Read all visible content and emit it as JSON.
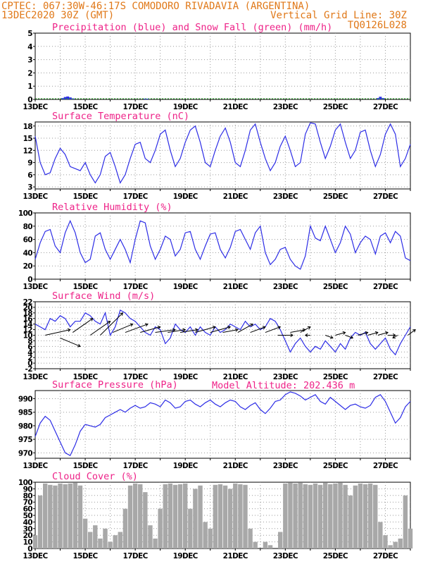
{
  "header": {
    "station": "CPTEC:  067:30W-46:17S  COMODORO RIVADAVIA (ARGENTINA)",
    "date": "13DEC2020 30Z (GMT)",
    "grid_note": "Vertical Grid Line: 30Z",
    "code": "TQ0126L028",
    "model_altitude": "Model Altitude: 202.436 m"
  },
  "x_labels": [
    "13DEC",
    "15DEC",
    "17DEC",
    "19DEC",
    "21DEC",
    "23DEC",
    "25DEC",
    "27DEC"
  ],
  "colors": {
    "line": "#2d2de6",
    "snow": "#22aa22",
    "bars": "#a8a8a8",
    "title": "#ee2288",
    "header": "#e07818"
  },
  "chart_data": [
    {
      "id": "precip",
      "type": "bar",
      "title": "Precipitation (blue) and Snow Fall (green) (mm/h)",
      "ylim": [
        0,
        5
      ],
      "yticks": [
        0,
        1,
        2,
        3,
        4,
        5
      ],
      "grid": true,
      "series": [
        {
          "name": "Precipitation",
          "color": "#2d2de6",
          "x": [
            1.1,
            1.2,
            1.3,
            1.4,
            1.5,
            4.4,
            4.5,
            13.7,
            13.8,
            13.9
          ],
          "y": [
            0.1,
            0.18,
            0.22,
            0.15,
            0.08,
            0.06,
            0.05,
            0.1,
            0.2,
            0.1
          ]
        },
        {
          "name": "Snow Fall",
          "color": "#22aa22",
          "x": [],
          "y": []
        }
      ]
    },
    {
      "id": "temp",
      "type": "line",
      "title": "Surface Temperature (nC)",
      "ylim": [
        2.5,
        19
      ],
      "yticks": [
        3,
        6,
        9,
        12,
        15,
        18
      ],
      "grid": true,
      "x": [
        0,
        0.2,
        0.4,
        0.6,
        0.8,
        1.0,
        1.2,
        1.4,
        1.6,
        1.8,
        2.0,
        2.2,
        2.4,
        2.6,
        2.8,
        3.0,
        3.2,
        3.4,
        3.6,
        3.8,
        4.0,
        4.2,
        4.4,
        4.6,
        4.8,
        5.0,
        5.2,
        5.4,
        5.6,
        5.8,
        6.0,
        6.2,
        6.4,
        6.6,
        6.8,
        7.0,
        7.2,
        7.4,
        7.6,
        7.8,
        8.0,
        8.2,
        8.4,
        8.6,
        8.8,
        9.0,
        9.2,
        9.4,
        9.6,
        9.8,
        10.0,
        10.2,
        10.4,
        10.6,
        10.8,
        11.0,
        11.2,
        11.4,
        11.6,
        11.8,
        12.0,
        12.2,
        12.4,
        12.6,
        12.8,
        13.0,
        13.2,
        13.4,
        13.6,
        13.8,
        14.0,
        14.2,
        14.4,
        14.6,
        14.8,
        15.0
      ],
      "series": [
        {
          "values": [
            15.5,
            9,
            6,
            6.5,
            10,
            12.5,
            11,
            8,
            7.5,
            7,
            9,
            6,
            4,
            6,
            10.5,
            11.5,
            8,
            4,
            6,
            10,
            13.5,
            14,
            10,
            9,
            12,
            16,
            17,
            12,
            8,
            10,
            14,
            17,
            18,
            14,
            9,
            8,
            12,
            15.5,
            17.5,
            14,
            9,
            8,
            12,
            17,
            18.5,
            14,
            10,
            7,
            9,
            13,
            15.5,
            12,
            8,
            9,
            16,
            18.8,
            18.5,
            14,
            10,
            13,
            17,
            18.5,
            14,
            10,
            12,
            16.5,
            17,
            12,
            8,
            11,
            16,
            18.5,
            16,
            8,
            10,
            13.5
          ]
        }
      ]
    },
    {
      "id": "rh",
      "type": "line",
      "title": "Relative Humidity (%)",
      "ylim": [
        0,
        100
      ],
      "yticks": [
        0,
        20,
        40,
        60,
        80,
        100
      ],
      "grid": true,
      "x": [
        0,
        0.2,
        0.4,
        0.6,
        0.8,
        1.0,
        1.2,
        1.4,
        1.6,
        1.8,
        2.0,
        2.2,
        2.4,
        2.6,
        2.8,
        3.0,
        3.2,
        3.4,
        3.6,
        3.8,
        4.0,
        4.2,
        4.4,
        4.6,
        4.8,
        5.0,
        5.2,
        5.4,
        5.6,
        5.8,
        6.0,
        6.2,
        6.4,
        6.6,
        6.8,
        7.0,
        7.2,
        7.4,
        7.6,
        7.8,
        8.0,
        8.2,
        8.4,
        8.6,
        8.8,
        9.0,
        9.2,
        9.4,
        9.6,
        9.8,
        10.0,
        10.2,
        10.4,
        10.6,
        10.8,
        11.0,
        11.2,
        11.4,
        11.6,
        11.8,
        12.0,
        12.2,
        12.4,
        12.6,
        12.8,
        13.0,
        13.2,
        13.4,
        13.6,
        13.8,
        14.0,
        14.2,
        14.4,
        14.6,
        14.8,
        15.0
      ],
      "series": [
        {
          "values": [
            30,
            55,
            72,
            75,
            50,
            40,
            70,
            88,
            70,
            40,
            25,
            30,
            65,
            70,
            45,
            30,
            45,
            60,
            45,
            25,
            60,
            88,
            85,
            50,
            30,
            45,
            65,
            60,
            35,
            45,
            70,
            72,
            45,
            30,
            50,
            68,
            70,
            45,
            32,
            48,
            72,
            75,
            60,
            45,
            70,
            80,
            40,
            22,
            30,
            45,
            48,
            30,
            20,
            15,
            35,
            80,
            62,
            58,
            80,
            60,
            40,
            55,
            80,
            68,
            40,
            55,
            65,
            60,
            38,
            65,
            70,
            55,
            72,
            65,
            32,
            28
          ]
        }
      ]
    },
    {
      "id": "wind",
      "type": "line",
      "title": "Surface Wind (m/s)",
      "ylim": [
        -2,
        22
      ],
      "yticks": [
        -2,
        0,
        2,
        4,
        6,
        8,
        10,
        12,
        14,
        16,
        18,
        20,
        22
      ],
      "grid": true,
      "x": [
        0,
        0.2,
        0.4,
        0.6,
        0.8,
        1.0,
        1.2,
        1.4,
        1.6,
        1.8,
        2.0,
        2.2,
        2.4,
        2.6,
        2.8,
        3.0,
        3.2,
        3.4,
        3.6,
        3.8,
        4.0,
        4.2,
        4.4,
        4.6,
        4.8,
        5.0,
        5.2,
        5.4,
        5.6,
        5.8,
        6.0,
        6.2,
        6.4,
        6.6,
        6.8,
        7.0,
        7.2,
        7.4,
        7.6,
        7.8,
        8.0,
        8.2,
        8.4,
        8.6,
        8.8,
        9.0,
        9.2,
        9.4,
        9.6,
        9.8,
        10.0,
        10.2,
        10.4,
        10.6,
        10.8,
        11.0,
        11.2,
        11.4,
        11.6,
        11.8,
        12.0,
        12.2,
        12.4,
        12.6,
        12.8,
        13.0,
        13.2,
        13.4,
        13.6,
        13.8,
        14.0,
        14.2,
        14.4,
        14.6,
        14.8,
        15.0
      ],
      "series": [
        {
          "values": [
            14,
            13,
            12,
            16,
            15,
            17,
            16,
            13,
            15,
            15,
            18,
            17,
            15,
            14,
            18,
            10,
            13,
            19,
            18,
            16,
            15,
            13,
            11,
            10,
            13,
            12,
            7,
            9,
            14,
            12,
            11,
            13,
            10,
            13,
            11,
            10,
            13,
            11,
            12,
            14,
            13,
            12,
            15,
            13,
            14,
            12,
            13,
            16,
            15,
            12,
            8,
            4,
            7,
            9,
            6,
            4,
            6,
            5,
            8,
            6,
            4,
            7,
            5,
            9,
            11,
            10,
            11,
            7,
            5,
            7,
            9,
            5,
            3,
            7,
            10,
            13
          ]
        }
      ],
      "arrows": [
        {
          "x": 0.4,
          "y": 10,
          "dx": 1.0,
          "dy": 2
        },
        {
          "x": 1.0,
          "y": 9,
          "dx": 0.8,
          "dy": -3
        },
        {
          "x": 1.5,
          "y": 11,
          "dx": 0.8,
          "dy": 5
        },
        {
          "x": 2.2,
          "y": 10,
          "dx": 0.8,
          "dy": 5
        },
        {
          "x": 2.6,
          "y": 10,
          "dx": 0.9,
          "dy": 8
        },
        {
          "x": 3.1,
          "y": 11,
          "dx": 0.8,
          "dy": 3
        },
        {
          "x": 3.6,
          "y": 11,
          "dx": 0.9,
          "dy": 3
        },
        {
          "x": 4.2,
          "y": 11,
          "dx": 0.8,
          "dy": 2
        },
        {
          "x": 4.8,
          "y": 11,
          "dx": 0.8,
          "dy": 1
        },
        {
          "x": 5.3,
          "y": 11,
          "dx": 0.7,
          "dy": 1
        },
        {
          "x": 5.8,
          "y": 11,
          "dx": 0.7,
          "dy": 1
        },
        {
          "x": 6.4,
          "y": 11,
          "dx": 0.8,
          "dy": 2
        },
        {
          "x": 7.0,
          "y": 11,
          "dx": 0.8,
          "dy": 2
        },
        {
          "x": 7.5,
          "y": 11,
          "dx": 0.6,
          "dy": 1
        },
        {
          "x": 8.1,
          "y": 11,
          "dx": 0.6,
          "dy": 3
        },
        {
          "x": 8.6,
          "y": 11,
          "dx": 0.6,
          "dy": 2
        },
        {
          "x": 9.2,
          "y": 11,
          "dx": 0.6,
          "dy": 2
        },
        {
          "x": 9.7,
          "y": 10,
          "dx": 0.6,
          "dy": 0
        },
        {
          "x": 10.2,
          "y": 11,
          "dx": 0.6,
          "dy": 1
        },
        {
          "x": 10.6,
          "y": 11,
          "dx": 0.4,
          "dy": 2
        },
        {
          "x": 11.0,
          "y": 10,
          "dx": -0.2,
          "dy": 0
        },
        {
          "x": 11.6,
          "y": 10,
          "dx": 0.3,
          "dy": -1
        },
        {
          "x": 12.0,
          "y": 10,
          "dx": 0.4,
          "dy": 1
        },
        {
          "x": 12.4,
          "y": 10,
          "dx": 0.3,
          "dy": -1
        },
        {
          "x": 12.9,
          "y": 10,
          "dx": 0.4,
          "dy": 1
        },
        {
          "x": 13.3,
          "y": 10,
          "dx": 0.4,
          "dy": 1
        },
        {
          "x": 13.7,
          "y": 10,
          "dx": 0.4,
          "dy": 1
        },
        {
          "x": 14.1,
          "y": 10,
          "dx": 0.3,
          "dy": 0
        },
        {
          "x": 14.5,
          "y": 10,
          "dx": -0.2,
          "dy": -1
        },
        {
          "x": 14.9,
          "y": 10,
          "dx": 0.3,
          "dy": 2
        }
      ]
    },
    {
      "id": "pres",
      "type": "line",
      "title": "Surface Pressure (hPa)",
      "ylim": [
        968,
        993
      ],
      "yticks": [
        970,
        975,
        980,
        985,
        990
      ],
      "grid": true,
      "x": [
        0,
        0.2,
        0.4,
        0.6,
        0.8,
        1.0,
        1.2,
        1.4,
        1.6,
        1.8,
        2.0,
        2.2,
        2.4,
        2.6,
        2.8,
        3.0,
        3.2,
        3.4,
        3.6,
        3.8,
        4.0,
        4.2,
        4.4,
        4.6,
        4.8,
        5.0,
        5.2,
        5.4,
        5.6,
        5.8,
        6.0,
        6.2,
        6.4,
        6.6,
        6.8,
        7.0,
        7.2,
        7.4,
        7.6,
        7.8,
        8.0,
        8.2,
        8.4,
        8.6,
        8.8,
        9.0,
        9.2,
        9.4,
        9.6,
        9.8,
        10.0,
        10.2,
        10.4,
        10.6,
        10.8,
        11.0,
        11.2,
        11.4,
        11.6,
        11.8,
        12.0,
        12.2,
        12.4,
        12.6,
        12.8,
        13.0,
        13.2,
        13.4,
        13.6,
        13.8,
        14.0,
        14.2,
        14.4,
        14.6,
        14.8,
        15.0
      ],
      "series": [
        {
          "values": [
            976,
            981,
            983.5,
            982,
            978,
            974,
            970,
            969,
            973,
            978,
            980.5,
            980,
            979.5,
            980.5,
            983,
            984,
            985,
            986,
            985,
            986.5,
            987.5,
            986.5,
            987,
            988.5,
            988,
            987,
            989.5,
            988.5,
            986.5,
            987,
            989,
            989.5,
            988,
            987,
            988.5,
            989.5,
            988,
            987,
            988.5,
            989.5,
            989,
            987,
            986,
            987.5,
            988.5,
            986,
            984.5,
            986.5,
            989,
            989.5,
            991.5,
            992.5,
            992,
            991,
            989.5,
            990.5,
            991.5,
            989,
            988,
            990.5,
            989,
            987.5,
            986,
            987.5,
            988,
            987,
            986.5,
            987.5,
            990.5,
            991.5,
            989,
            985,
            981,
            983,
            987,
            989
          ]
        }
      ]
    },
    {
      "id": "cloud",
      "type": "bar",
      "title": "Cloud Cover (%)",
      "ylim": [
        0,
        100
      ],
      "yticks": [
        0,
        10,
        20,
        30,
        40,
        50,
        60,
        70,
        80,
        90,
        100
      ],
      "grid": true,
      "x": [
        0,
        0.2,
        0.4,
        0.6,
        0.8,
        1.0,
        1.2,
        1.4,
        1.6,
        1.8,
        2.0,
        2.2,
        2.4,
        2.6,
        2.8,
        3.0,
        3.2,
        3.4,
        3.6,
        3.8,
        4.0,
        4.2,
        4.4,
        4.6,
        4.8,
        5.0,
        5.2,
        5.4,
        5.6,
        5.8,
        6.0,
        6.2,
        6.4,
        6.6,
        6.8,
        7.0,
        7.2,
        7.4,
        7.6,
        7.8,
        8.0,
        8.2,
        8.4,
        8.6,
        8.8,
        9.0,
        9.2,
        9.4,
        9.6,
        9.8,
        10.0,
        10.2,
        10.4,
        10.6,
        10.8,
        11.0,
        11.2,
        11.4,
        11.6,
        11.8,
        12.0,
        12.2,
        12.4,
        12.6,
        12.8,
        13.0,
        13.2,
        13.4,
        13.6,
        13.8,
        14.0,
        14.2,
        14.4,
        14.6,
        14.8,
        15.0
      ],
      "series": [
        {
          "name": "Cloud Cover",
          "values": [
            20,
            80,
            98,
            96,
            95,
            98,
            97,
            98,
            99,
            95,
            45,
            25,
            35,
            15,
            30,
            10,
            20,
            25,
            60,
            95,
            98,
            97,
            85,
            35,
            15,
            60,
            97,
            98,
            96,
            97,
            98,
            60,
            90,
            95,
            40,
            30,
            96,
            97,
            95,
            90,
            98,
            97,
            96,
            30,
            10,
            0,
            10,
            5,
            0,
            25,
            98,
            99,
            98,
            99,
            97,
            96,
            98,
            96,
            99,
            97,
            98,
            99,
            96,
            80,
            95,
            98,
            97,
            98,
            96,
            40,
            20,
            5,
            10,
            15,
            80,
            30
          ]
        }
      ]
    }
  ]
}
